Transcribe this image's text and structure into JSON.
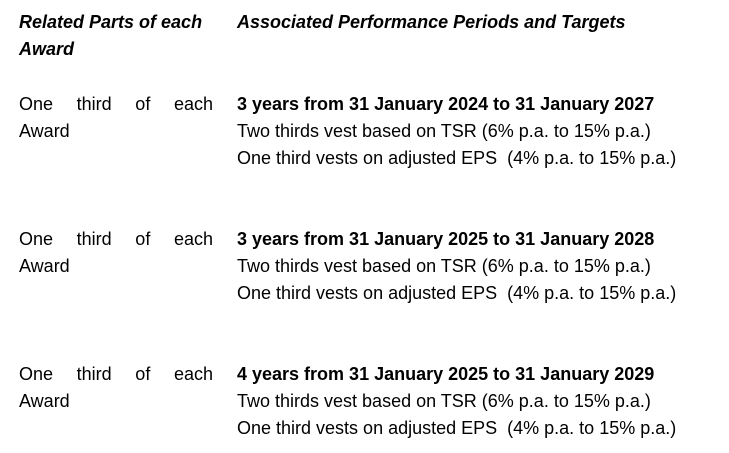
{
  "header": {
    "left_line1": "Related Parts of each",
    "left_line2": "Award",
    "right": "Associated Performance Periods and Targets"
  },
  "rows": [
    {
      "part_line1": "One third of each",
      "part_line2": "Award",
      "period": "3 years from 31 January 2024 to 31 January 2027",
      "tsr": "Two thirds vest based on TSR (6% p.a. to 15% p.a.)",
      "eps": "One third vests on adjusted EPS  (4% p.a. to 15% p.a.)"
    },
    {
      "part_line1": "One third of each",
      "part_line2": "Award",
      "period": "3 years from 31 January 2025 to 31 January 2028",
      "tsr": "Two thirds vest based on TSR (6% p.a. to 15% p.a.)",
      "eps": "One third vests on adjusted EPS  (4% p.a. to 15% p.a.)"
    },
    {
      "part_line1": "One third of each",
      "part_line2": "Award",
      "period": "4 years from 31 January 2025 to 31 January 2029",
      "tsr": "Two thirds vest based on TSR (6% p.a. to 15% p.a.)",
      "eps": "One third vests on adjusted EPS  (4% p.a. to 15% p.a.)"
    }
  ]
}
